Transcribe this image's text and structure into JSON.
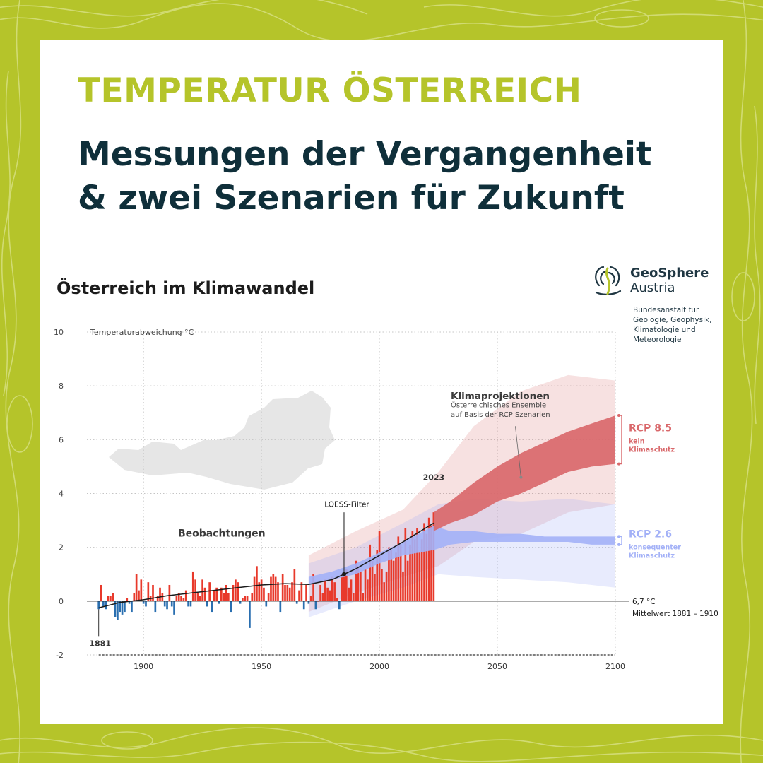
{
  "header": {
    "kicker": "TEMPERATUR ÖSTERREICH",
    "headline_line1": "Messungen der Vergangenheit",
    "headline_line2": "& zwei Szenarien für Zukunft"
  },
  "brand": {
    "name_bold": "GeoSphere",
    "name_regular": "Austria",
    "desc_lines": [
      "Bundesanstalt für",
      "Geologie, Geophysik,",
      "Klimatologie und",
      "Meteorologie"
    ],
    "accent_color": "#b5c42a",
    "navy_color": "#0f2f3a"
  },
  "chart_data": {
    "type": "bar",
    "title": "Österreich im Klimawandel",
    "ylabel": "Temperaturabweichung °C",
    "xlabel": "",
    "xlim": [
      1876,
      2100
    ],
    "ylim": [
      -2,
      10
    ],
    "x_ticks": [
      1900,
      1950,
      2000,
      2050,
      2100
    ],
    "y_ticks": [
      -2,
      0,
      2,
      4,
      6,
      8,
      10
    ],
    "baseline": {
      "value_label": "6,7 °C",
      "period_label": "Mittelwert 1881 – 1910"
    },
    "observations": {
      "label": "Beobachtungen",
      "start_year": 1881,
      "end_year": 2023,
      "start_label": "1881",
      "end_label": "2023",
      "positive_color": "#e8392b",
      "negative_color": "#2a6fb0",
      "values": [
        -0.3,
        0.6,
        -0.2,
        -0.3,
        0.2,
        0.2,
        0.3,
        -0.6,
        -0.7,
        -0.4,
        -0.5,
        -0.4,
        0.1,
        -0.1,
        -0.4,
        0.3,
        1.0,
        0.4,
        0.8,
        -0.1,
        -0.2,
        0.7,
        0.2,
        0.6,
        -0.4,
        0.2,
        0.5,
        0.3,
        -0.2,
        -0.3,
        0.6,
        -0.2,
        -0.5,
        0.2,
        0.3,
        0.2,
        0.1,
        0.4,
        -0.2,
        -0.2,
        1.1,
        0.8,
        0.3,
        0.2,
        0.8,
        0.5,
        -0.2,
        0.7,
        -0.4,
        0.4,
        0.5,
        -0.1,
        0.5,
        0.3,
        0.6,
        0.3,
        -0.4,
        0.6,
        0.8,
        0.7,
        -0.1,
        0.1,
        0.2,
        0.2,
        -1.0,
        0.3,
        0.9,
        1.3,
        0.7,
        0.8,
        0.5,
        -0.2,
        0.3,
        0.9,
        1.0,
        0.9,
        0.7,
        -0.4,
        1.0,
        0.6,
        0.6,
        0.5,
        0.7,
        1.2,
        -0.1,
        0.4,
        0.7,
        -0.3,
        0.6,
        -0.1,
        0.2,
        1.0,
        -0.3,
        0.0,
        0.6,
        0.3,
        0.8,
        0.5,
        0.4,
        0.9,
        0.7,
        0.1,
        -0.3,
        1.0,
        0.9,
        1.2,
        0.5,
        0.8,
        0.3,
        1.5,
        1.3,
        1.1,
        0.3,
        1.2,
        0.8,
        2.1,
        1.5,
        1.0,
        1.9,
        2.6,
        1.2,
        0.7,
        1.1,
        2.0,
        1.9,
        1.5,
        1.8,
        2.4,
        2.1,
        1.1,
        2.7,
        1.5,
        2.1,
        2.6,
        2.3,
        2.7,
        1.8,
        2.3,
        2.9,
        2.5,
        3.1,
        2.8,
        3.3
      ],
      "loess_label": "LOESS-Filter",
      "loess": [
        [
          1881,
          -0.25
        ],
        [
          1890,
          -0.05
        ],
        [
          1900,
          0.05
        ],
        [
          1910,
          0.2
        ],
        [
          1920,
          0.3
        ],
        [
          1930,
          0.4
        ],
        [
          1940,
          0.5
        ],
        [
          1950,
          0.6
        ],
        [
          1960,
          0.65
        ],
        [
          1970,
          0.62
        ],
        [
          1980,
          0.8
        ],
        [
          1990,
          1.2
        ],
        [
          2000,
          1.7
        ],
        [
          2010,
          2.2
        ],
        [
          2023,
          2.9
        ]
      ]
    },
    "projections": {
      "label": "Klimaprojektionen",
      "sublabel_line1": "Österreichisches Ensemble",
      "sublabel_line2": "auf Basis der RCP Szenarien",
      "rcp85": {
        "name": "RCP 8.5",
        "desc_line1": "kein",
        "desc_line2": "Klimaschutz",
        "color": "#d9686b",
        "band": [
          [
            2023,
            2.6,
            3.3
          ],
          [
            2030,
            2.9,
            3.7
          ],
          [
            2040,
            3.2,
            4.4
          ],
          [
            2050,
            3.7,
            5.0
          ],
          [
            2060,
            4.0,
            5.5
          ],
          [
            2070,
            4.4,
            5.9
          ],
          [
            2080,
            4.8,
            6.3
          ],
          [
            2090,
            5.0,
            6.6
          ],
          [
            2100,
            5.1,
            6.9
          ]
        ]
      },
      "rcp26": {
        "name": "RCP 2.6",
        "desc_line1": "konsequenter",
        "desc_line2": "Klimaschutz",
        "color": "#a3b1f7",
        "band": [
          [
            1970,
            0.6,
            0.9
          ],
          [
            1980,
            0.8,
            1.1
          ],
          [
            1990,
            1.0,
            1.4
          ],
          [
            2000,
            1.4,
            1.8
          ],
          [
            2010,
            1.7,
            2.2
          ],
          [
            2023,
            1.9,
            2.8
          ],
          [
            2030,
            2.1,
            2.6
          ],
          [
            2040,
            2.2,
            2.6
          ],
          [
            2050,
            2.2,
            2.5
          ],
          [
            2060,
            2.2,
            2.5
          ],
          [
            2070,
            2.2,
            2.4
          ],
          [
            2080,
            2.2,
            2.4
          ],
          [
            2090,
            2.1,
            2.4
          ],
          [
            2100,
            2.1,
            2.4
          ]
        ]
      },
      "envelope_high": [
        [
          1970,
          -0.4,
          1.7
        ],
        [
          1990,
          0.3,
          2.6
        ],
        [
          2010,
          0.9,
          3.4
        ],
        [
          2025,
          1.3,
          4.8
        ],
        [
          2040,
          2.2,
          6.5
        ],
        [
          2060,
          2.5,
          7.8
        ],
        [
          2080,
          3.3,
          8.4
        ],
        [
          2100,
          3.6,
          8.2
        ]
      ],
      "envelope_low": [
        [
          1970,
          -0.6,
          1.4
        ],
        [
          1990,
          0.0,
          2.0
        ],
        [
          2010,
          0.5,
          2.9
        ],
        [
          2025,
          1.0,
          3.6
        ],
        [
          2040,
          0.9,
          3.8
        ],
        [
          2060,
          0.8,
          3.7
        ],
        [
          2080,
          0.7,
          3.8
        ],
        [
          2100,
          0.5,
          3.6
        ]
      ]
    }
  }
}
